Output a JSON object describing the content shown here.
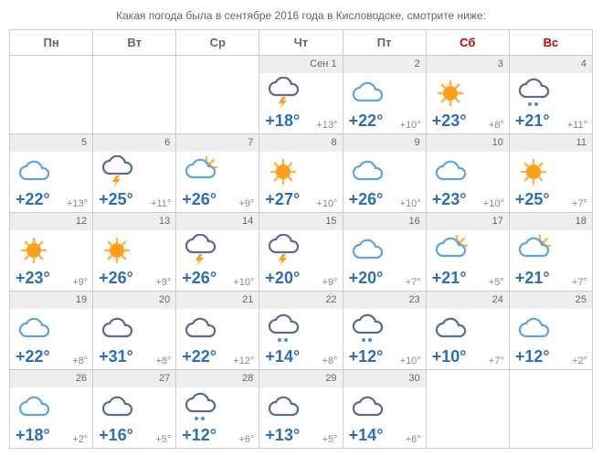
{
  "title": "Какая погода была в сентябре 2016 года в Кисловодске, смотрите ниже:",
  "month_label": "Сен",
  "weekdays": [
    {
      "label": "Пн",
      "weekend": false
    },
    {
      "label": "Вт",
      "weekend": false
    },
    {
      "label": "Ср",
      "weekend": false
    },
    {
      "label": "Чт",
      "weekend": false
    },
    {
      "label": "Пт",
      "weekend": false
    },
    {
      "label": "Сб",
      "weekend": true
    },
    {
      "label": "Вс",
      "weekend": true
    }
  ],
  "colors": {
    "hi_text": "#2e6eb6",
    "lo_text": "#888888",
    "date_text": "#666666",
    "weekend_text": "#cc0000",
    "strip_bg": "#eeeeee",
    "border": "#cccccc",
    "cloud": "#5aa7e0",
    "cloud_dark": "#5a6b8c",
    "sun_core": "#ff9e1b",
    "sun_ray": "#ffb547",
    "rain": "#4a90d9"
  },
  "icons": {
    "cloud": "cloud",
    "cloud_dark": "cloud_dark",
    "cloud_rain": "cloud_rain",
    "cloud_storm": "cloud_storm",
    "storm_dark": "storm_dark",
    "sun": "sun",
    "partly": "partly"
  },
  "cells": [
    {
      "empty": true
    },
    {
      "empty": true
    },
    {
      "empty": true
    },
    {
      "date": "1",
      "first": true,
      "icon": "storm_dark",
      "hi": "+18°",
      "lo": "+13°"
    },
    {
      "date": "2",
      "icon": "cloud",
      "hi": "+22°",
      "lo": "+10°"
    },
    {
      "date": "3",
      "icon": "sun",
      "hi": "+23°",
      "lo": "+8°"
    },
    {
      "date": "4",
      "icon": "cloud_rain",
      "hi": "+21°",
      "lo": "+11°"
    },
    {
      "date": "5",
      "icon": "cloud",
      "hi": "+22°",
      "lo": "+13°"
    },
    {
      "date": "6",
      "icon": "storm_dark",
      "hi": "+25°",
      "lo": "+11°"
    },
    {
      "date": "7",
      "icon": "partly",
      "hi": "+26°",
      "lo": "+9°"
    },
    {
      "date": "8",
      "icon": "sun",
      "hi": "+27°",
      "lo": "+10°"
    },
    {
      "date": "9",
      "icon": "cloud",
      "hi": "+26°",
      "lo": "+10°"
    },
    {
      "date": "10",
      "icon": "cloud",
      "hi": "+23°",
      "lo": "+10°"
    },
    {
      "date": "11",
      "icon": "sun",
      "hi": "+25°",
      "lo": "+7°"
    },
    {
      "date": "12",
      "icon": "sun",
      "hi": "+23°",
      "lo": "+9°"
    },
    {
      "date": "13",
      "icon": "sun",
      "hi": "+26°",
      "lo": "+9°"
    },
    {
      "date": "14",
      "icon": "storm_dark",
      "hi": "+26°",
      "lo": "+10°"
    },
    {
      "date": "15",
      "icon": "storm_dark",
      "hi": "+20°",
      "lo": "+9°"
    },
    {
      "date": "16",
      "icon": "cloud",
      "hi": "+20°",
      "lo": "+7°"
    },
    {
      "date": "17",
      "icon": "partly",
      "hi": "+21°",
      "lo": "+5°"
    },
    {
      "date": "18",
      "icon": "partly",
      "hi": "+21°",
      "lo": "+7°"
    },
    {
      "date": "19",
      "icon": "cloud",
      "hi": "+22°",
      "lo": "+8°"
    },
    {
      "date": "20",
      "icon": "cloud_dark",
      "hi": "+31°",
      "lo": "+8°"
    },
    {
      "date": "21",
      "icon": "cloud_dark",
      "hi": "+22°",
      "lo": "+12°"
    },
    {
      "date": "22",
      "icon": "cloud_rain",
      "hi": "+14°",
      "lo": "+8°"
    },
    {
      "date": "23",
      "icon": "cloud_rain",
      "hi": "+12°",
      "lo": "+10°"
    },
    {
      "date": "24",
      "icon": "cloud_dark",
      "hi": "+10°",
      "lo": "+7°"
    },
    {
      "date": "25",
      "icon": "cloud",
      "hi": "+12°",
      "lo": "+2°"
    },
    {
      "date": "26",
      "icon": "cloud",
      "hi": "+18°",
      "lo": "+2°"
    },
    {
      "date": "27",
      "icon": "cloud_dark",
      "hi": "+16°",
      "lo": "+5°"
    },
    {
      "date": "28",
      "icon": "cloud_rain",
      "hi": "+12°",
      "lo": "+6°"
    },
    {
      "date": "29",
      "icon": "cloud_dark",
      "hi": "+13°",
      "lo": "+5°"
    },
    {
      "date": "30",
      "icon": "cloud_dark",
      "hi": "+14°",
      "lo": "+6°"
    },
    {
      "empty": true
    },
    {
      "empty": true
    }
  ]
}
